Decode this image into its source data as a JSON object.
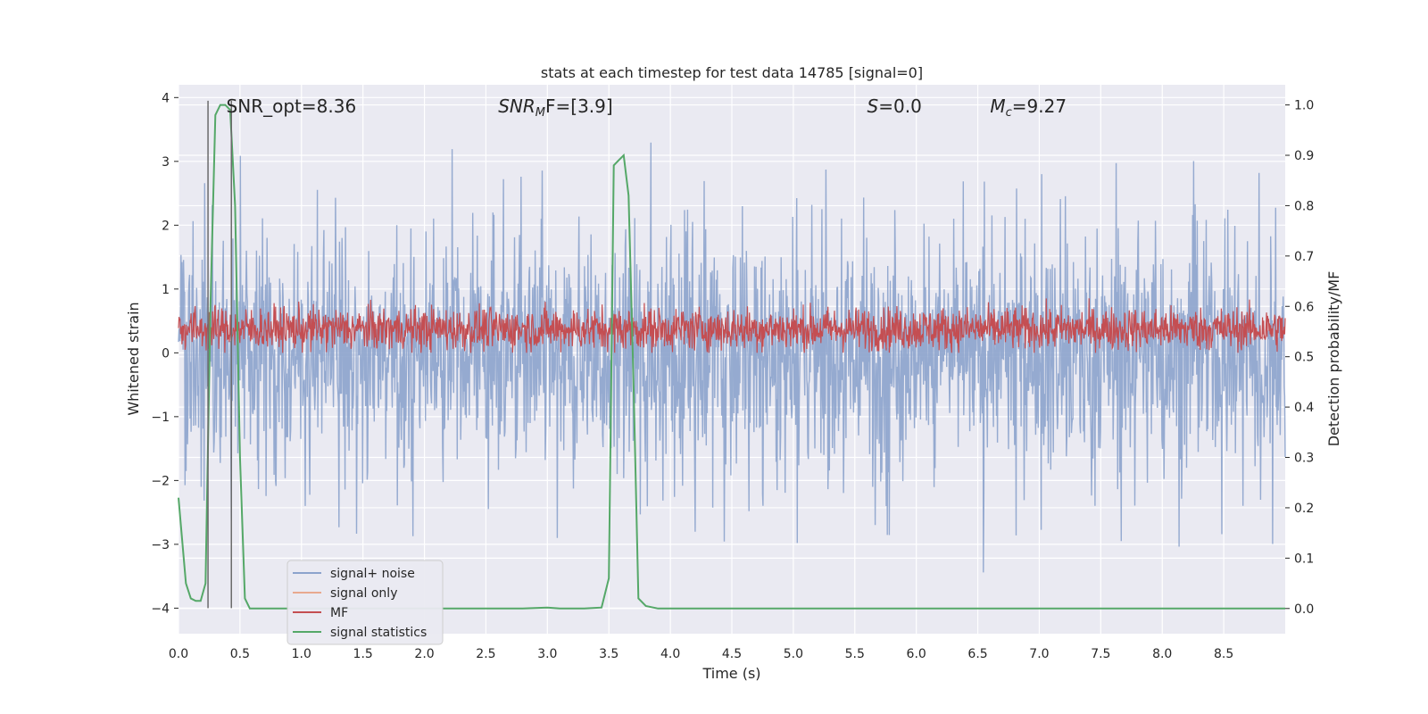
{
  "chart_data": {
    "type": "line",
    "title": "stats at each timestep for test data 14785 [signal=0]",
    "xlabel": "Time (s)",
    "ylabel_left": "Whitened strain",
    "ylabel_right": "Detection probability/MF",
    "xlim": [
      0.0,
      9.0
    ],
    "ylim_left": [
      -4.4,
      4.2
    ],
    "ylim_right": [
      -0.05,
      1.04
    ],
    "x_ticks": [
      "0.0",
      "0.5",
      "1.0",
      "1.5",
      "2.0",
      "2.5",
      "3.0",
      "3.5",
      "4.0",
      "4.5",
      "5.0",
      "5.5",
      "6.0",
      "6.5",
      "7.0",
      "7.5",
      "8.0",
      "8.5"
    ],
    "y_left_ticks": [
      "−4",
      "−3",
      "−2",
      "−1",
      "0",
      "1",
      "2",
      "3",
      "4"
    ],
    "y_right_ticks": [
      "0.0",
      "0.1",
      "0.2",
      "0.3",
      "0.4",
      "0.5",
      "0.6",
      "0.7",
      "0.8",
      "0.9",
      "1.0"
    ],
    "grid": true,
    "legend_position": "lower-left",
    "annotations": [
      {
        "text": "SNR_opt=8.36",
        "x": 0.2,
        "y": 3.85
      },
      {
        "text": "SNR",
        "sub": "M",
        "tail": "F=[3.9]",
        "x": 2.6,
        "y": 3.85
      },
      {
        "text": "S",
        "tail": "=0.0",
        "x": 5.6,
        "y": 3.85
      },
      {
        "text": "M",
        "sub": "c",
        "tail": "=9.27",
        "x": 6.6,
        "y": 3.85
      }
    ],
    "vertical_lines": [
      0.24,
      0.43
    ],
    "series": [
      {
        "name": "signal+ noise",
        "color": "#8ca3cc",
        "kind": "noise",
        "axis": "left",
        "band": [
          -1.5,
          1.5
        ],
        "peaks": [
          3.7,
          -3.2,
          3.4,
          -4.0,
          3.5
        ]
      },
      {
        "name": "signal only",
        "color": "#e8a98f",
        "kind": "flat",
        "axis": "left",
        "values": [
          0
        ]
      },
      {
        "name": "MF",
        "color": "#c44e52",
        "kind": "noise",
        "axis": "left",
        "band": [
          0.0,
          0.75
        ],
        "peaks": [
          0.9,
          1.0,
          0.95
        ]
      },
      {
        "name": "signal statistics",
        "color": "#55a868",
        "kind": "line",
        "axis": "right",
        "x": [
          0.0,
          0.06,
          0.1,
          0.14,
          0.18,
          0.22,
          0.26,
          0.3,
          0.34,
          0.38,
          0.42,
          0.46,
          0.5,
          0.54,
          0.58,
          0.7,
          1.0,
          1.5,
          2.0,
          2.5,
          2.8,
          3.0,
          3.1,
          3.3,
          3.44,
          3.5,
          3.54,
          3.58,
          3.62,
          3.66,
          3.7,
          3.74,
          3.8,
          3.9,
          4.0,
          5.0,
          6.0,
          7.0,
          8.0,
          9.0
        ],
        "values": [
          0.22,
          0.05,
          0.02,
          0.015,
          0.015,
          0.05,
          0.6,
          0.98,
          1.0,
          1.0,
          0.99,
          0.8,
          0.3,
          0.02,
          0.0,
          0.0,
          0.0,
          0.0,
          0.0,
          0.0,
          0.0,
          0.002,
          0.0,
          0.0,
          0.002,
          0.06,
          0.88,
          0.89,
          0.9,
          0.82,
          0.45,
          0.02,
          0.005,
          0.0,
          0.0,
          0.0,
          0.0,
          0.0,
          0.0,
          0.0
        ]
      }
    ]
  }
}
